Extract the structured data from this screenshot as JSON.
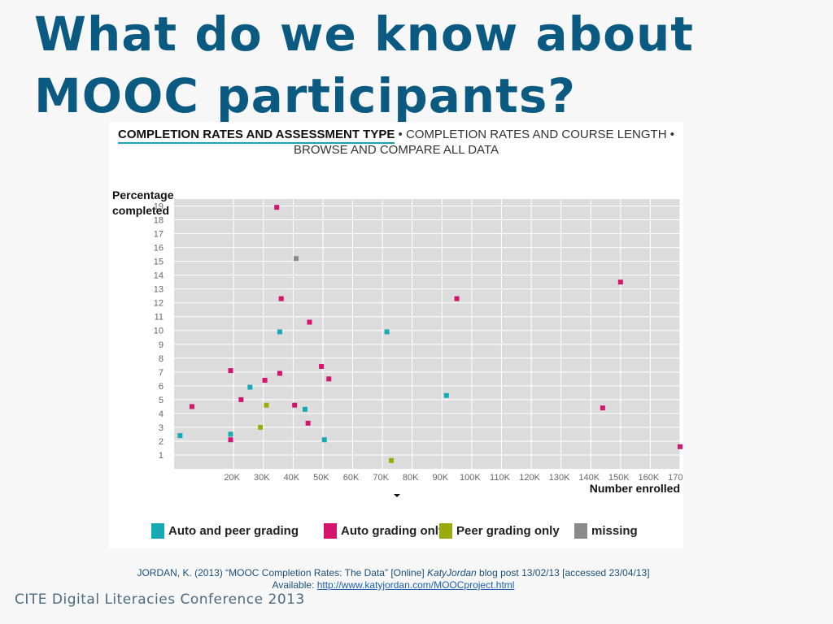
{
  "slide": {
    "title_line1": "What do we know about",
    "title_line2": "MOOC participants?",
    "footer": "CITE Digital Literacies Conference 2013"
  },
  "tabs": {
    "active": "COMPLETION RATES AND ASSESSMENT TYPE",
    "sep1": " • ",
    "second": "COMPLETION RATES AND COURSE LENGTH",
    "sep2": " •",
    "third": "BROWSE AND COMPARE ALL DATA"
  },
  "citation": {
    "part1": "JORDAN, K.  (2013) “MOOC Completion Rates: The Data” [Online] ",
    "italic": "KatyJordan",
    "part2": " blog post 13/02/13 [accessed 23/04/13]",
    "available": "Available: ",
    "link": "http://www.katyjordan.com/MOOCproject.html"
  },
  "chart_data": {
    "type": "scatter",
    "ylabel": "Percentage completed",
    "xlabel": "Number enrolled",
    "xlim": [
      0,
      170000
    ],
    "ylim": [
      0,
      19.5
    ],
    "x_ticks": [
      20000,
      30000,
      40000,
      50000,
      60000,
      70000,
      80000,
      90000,
      100000,
      110000,
      120000,
      130000,
      140000,
      150000,
      160000,
      170000
    ],
    "x_tick_labels": [
      "20K",
      "30K",
      "40K",
      "50K",
      "60K",
      "70K",
      "80K",
      "90K",
      "100K",
      "110K",
      "120K",
      "130K",
      "140K",
      "150K",
      "160K",
      "170K"
    ],
    "y_ticks": [
      1,
      2,
      3,
      4,
      5,
      6,
      7,
      8,
      9,
      10,
      11,
      12,
      13,
      14,
      15,
      16,
      17,
      18,
      19
    ],
    "y_tick_labels": [
      "1",
      "2",
      "3",
      "4",
      "5",
      "6",
      "7",
      "8",
      "9",
      "10",
      "11",
      "12",
      "13",
      "14",
      "15",
      "16",
      "17",
      "18",
      "19"
    ],
    "grid": true,
    "legend_position": "bottom",
    "colors": {
      "Auto and peer grading": "#17aab4",
      "Auto grading only": "#d4146e",
      "Peer grading only": "#9bab0e",
      "missing": "#8a8a8a"
    },
    "series": [
      {
        "name": "Auto and peer grading",
        "points": [
          [
            2000,
            2.4
          ],
          [
            19000,
            2.5
          ],
          [
            25500,
            5.9
          ],
          [
            35500,
            9.9
          ],
          [
            44000,
            4.3
          ],
          [
            50500,
            2.1
          ],
          [
            71500,
            9.9
          ],
          [
            91500,
            5.3
          ]
        ]
      },
      {
        "name": "Auto grading only",
        "points": [
          [
            6000,
            4.5
          ],
          [
            19000,
            7.1
          ],
          [
            22500,
            5.0
          ],
          [
            30500,
            6.4
          ],
          [
            34500,
            18.9
          ],
          [
            35500,
            6.9
          ],
          [
            36000,
            12.3
          ],
          [
            40500,
            4.6
          ],
          [
            45000,
            3.3
          ],
          [
            45500,
            10.6
          ],
          [
            49500,
            7.4
          ],
          [
            52000,
            6.5
          ],
          [
            95000,
            12.3
          ],
          [
            144000,
            4.4
          ],
          [
            150000,
            13.5
          ],
          [
            170000,
            1.6
          ],
          [
            19000,
            2.1
          ]
        ]
      },
      {
        "name": "Peer grading only",
        "points": [
          [
            31000,
            4.6
          ],
          [
            29000,
            3.0
          ],
          [
            73000,
            0.6
          ]
        ]
      },
      {
        "name": "missing",
        "points": [
          [
            41000,
            15.2
          ]
        ]
      }
    ]
  }
}
